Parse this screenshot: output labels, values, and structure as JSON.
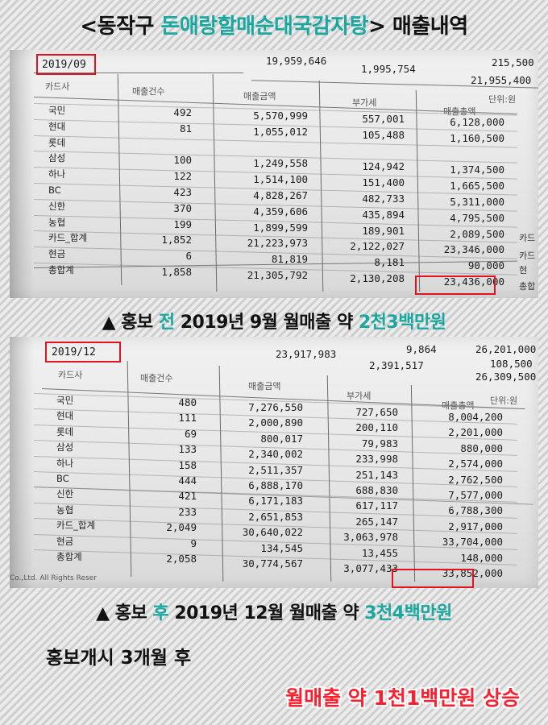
{
  "title": {
    "prefix": "<동작구 ",
    "highlight": "돈애랑할매순대국감자탕",
    "suffix": "> 매출내역"
  },
  "photo1": {
    "top_numbers": [
      "19,959,646",
      "1,995,754",
      "215,500",
      "21,955,400"
    ],
    "date": "2019/09",
    "unit": "단위:원",
    "headers": [
      "카드사",
      "매출건수",
      "매출금액",
      "부가세",
      "매출총액"
    ],
    "rows": [
      [
        "국민",
        "492",
        "5,570,999",
        "557,001",
        "6,128,000"
      ],
      [
        "현대",
        "81",
        "1,055,012",
        "105,488",
        "1,160,500"
      ],
      [
        "롯데",
        "",
        "",
        "",
        ""
      ],
      [
        "삼성",
        "100",
        "1,249,558",
        "124,942",
        "1,374,500"
      ],
      [
        "하나",
        "122",
        "1,514,100",
        "151,400",
        "1,665,500"
      ],
      [
        "BC",
        "423",
        "4,828,267",
        "482,733",
        "5,311,000"
      ],
      [
        "신한",
        "370",
        "4,359,606",
        "435,894",
        "4,795,500"
      ],
      [
        "농협",
        "199",
        "1,899,599",
        "189,901",
        "2,089,500"
      ],
      [
        "카드_합계",
        "1,852",
        "21,223,973",
        "2,122,027",
        "23,346,000"
      ],
      [
        "현금",
        "6",
        "81,819",
        "8,181",
        "90,000"
      ],
      [
        "총합계",
        "1,858",
        "21,305,792",
        "2,130,208",
        "23,436,000"
      ]
    ],
    "side_labels": [
      "카드",
      "카드",
      "현",
      "총합"
    ]
  },
  "caption1": {
    "marker": "▲",
    "pre": " 홍보 ",
    "hl1": "전",
    "mid": " 2019년 9월 월매출 약 ",
    "hl2": "2천3백만원"
  },
  "photo2": {
    "top_numbers": [
      "23,917,983",
      "9,864",
      "2,391,517",
      "26,201,000",
      "108,500",
      "26,309,500"
    ],
    "date": "2019/12",
    "unit": "단위:원",
    "headers": [
      "카드사",
      "매출건수",
      "매출금액",
      "부가세",
      "매출총액"
    ],
    "rows": [
      [
        "국민",
        "480",
        "7,276,550",
        "727,650",
        "8,004,200"
      ],
      [
        "현대",
        "111",
        "2,000,890",
        "200,110",
        "2,201,000"
      ],
      [
        "롯데",
        "69",
        "800,017",
        "79,983",
        "880,000"
      ],
      [
        "삼성",
        "133",
        "2,340,002",
        "233,998",
        "2,574,000"
      ],
      [
        "하나",
        "158",
        "2,511,357",
        "251,143",
        "2,762,500"
      ],
      [
        "BC",
        "444",
        "6,888,170",
        "688,830",
        "7,577,000"
      ],
      [
        "신한",
        "421",
        "6,171,183",
        "617,117",
        "6,788,300"
      ],
      [
        "농협",
        "233",
        "2,651,853",
        "265,147",
        "2,917,000"
      ],
      [
        "카드_합계",
        "2,049",
        "30,640,022",
        "3,063,978",
        "33,704,000"
      ],
      [
        "현금",
        "9",
        "134,545",
        "13,455",
        "148,000"
      ],
      [
        "총합계",
        "2,058",
        "30,774,567",
        "3,077,433",
        "33,852,000"
      ]
    ],
    "footer": "Co.,Ltd. All Rights Reser"
  },
  "caption2": {
    "marker": "▲",
    "pre": " 홍보 ",
    "hl1": "후",
    "mid": " 2019년 12월 월매출 약 ",
    "hl2": "3천4백만원"
  },
  "line3": "홍보개시 3개월 후",
  "line4": "월매출 약 1천1백만원 상승"
}
